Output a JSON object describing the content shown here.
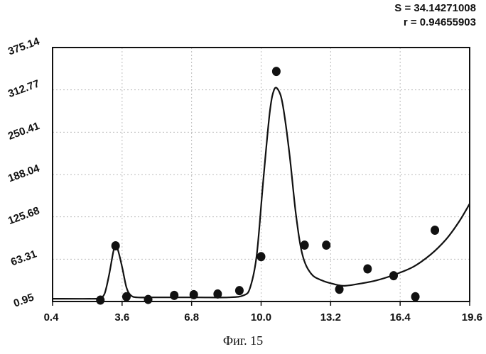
{
  "stats": {
    "s_line": "S = 34.14271008",
    "r_line": "r = 0.94655903"
  },
  "caption": "Фиг. 15",
  "chart_data": {
    "type": "scatter",
    "title": "",
    "xlabel": "",
    "ylabel": "",
    "xlim": [
      0.4,
      19.6
    ],
    "ylim": [
      0.95,
      375.14
    ],
    "grid": true,
    "x_ticks": [
      "0.4",
      "3.6",
      "6.8",
      "10.0",
      "13.2",
      "16.4",
      "19.6"
    ],
    "y_ticks": [
      "0.95",
      "63.31",
      "125.68",
      "188.04",
      "250.41",
      "312.77",
      "375.14"
    ],
    "points": [
      {
        "x": 2.6,
        "y": 3
      },
      {
        "x": 3.3,
        "y": 83
      },
      {
        "x": 3.8,
        "y": 8
      },
      {
        "x": 4.8,
        "y": 4
      },
      {
        "x": 6.0,
        "y": 10
      },
      {
        "x": 6.9,
        "y": 11
      },
      {
        "x": 8.0,
        "y": 12
      },
      {
        "x": 9.0,
        "y": 17
      },
      {
        "x": 10.0,
        "y": 67
      },
      {
        "x": 10.7,
        "y": 340
      },
      {
        "x": 12.0,
        "y": 84
      },
      {
        "x": 13.0,
        "y": 84
      },
      {
        "x": 13.6,
        "y": 19
      },
      {
        "x": 14.9,
        "y": 49
      },
      {
        "x": 16.1,
        "y": 39
      },
      {
        "x": 17.1,
        "y": 8
      },
      {
        "x": 18.0,
        "y": 106
      }
    ],
    "curve": [
      {
        "x": 0.4,
        "y": 5
      },
      {
        "x": 2.4,
        "y": 5
      },
      {
        "x": 2.6,
        "y": 6
      },
      {
        "x": 2.8,
        "y": 13
      },
      {
        "x": 3.0,
        "y": 40
      },
      {
        "x": 3.2,
        "y": 75
      },
      {
        "x": 3.3,
        "y": 82
      },
      {
        "x": 3.4,
        "y": 78
      },
      {
        "x": 3.6,
        "y": 52
      },
      {
        "x": 3.8,
        "y": 22
      },
      {
        "x": 4.0,
        "y": 10
      },
      {
        "x": 4.3,
        "y": 7
      },
      {
        "x": 5.0,
        "y": 7
      },
      {
        "x": 7.0,
        "y": 7
      },
      {
        "x": 8.5,
        "y": 7
      },
      {
        "x": 9.2,
        "y": 10
      },
      {
        "x": 9.5,
        "y": 22
      },
      {
        "x": 9.8,
        "y": 70
      },
      {
        "x": 10.1,
        "y": 180
      },
      {
        "x": 10.4,
        "y": 280
      },
      {
        "x": 10.6,
        "y": 313
      },
      {
        "x": 10.8,
        "y": 312
      },
      {
        "x": 11.0,
        "y": 290
      },
      {
        "x": 11.3,
        "y": 220
      },
      {
        "x": 11.6,
        "y": 130
      },
      {
        "x": 11.9,
        "y": 70
      },
      {
        "x": 12.3,
        "y": 42
      },
      {
        "x": 12.8,
        "y": 32
      },
      {
        "x": 13.3,
        "y": 27
      },
      {
        "x": 13.8,
        "y": 24
      },
      {
        "x": 14.5,
        "y": 27
      },
      {
        "x": 15.3,
        "y": 32
      },
      {
        "x": 16.1,
        "y": 40
      },
      {
        "x": 17.0,
        "y": 52
      },
      {
        "x": 17.8,
        "y": 70
      },
      {
        "x": 18.5,
        "y": 92
      },
      {
        "x": 19.1,
        "y": 118
      },
      {
        "x": 19.6,
        "y": 145
      }
    ]
  }
}
